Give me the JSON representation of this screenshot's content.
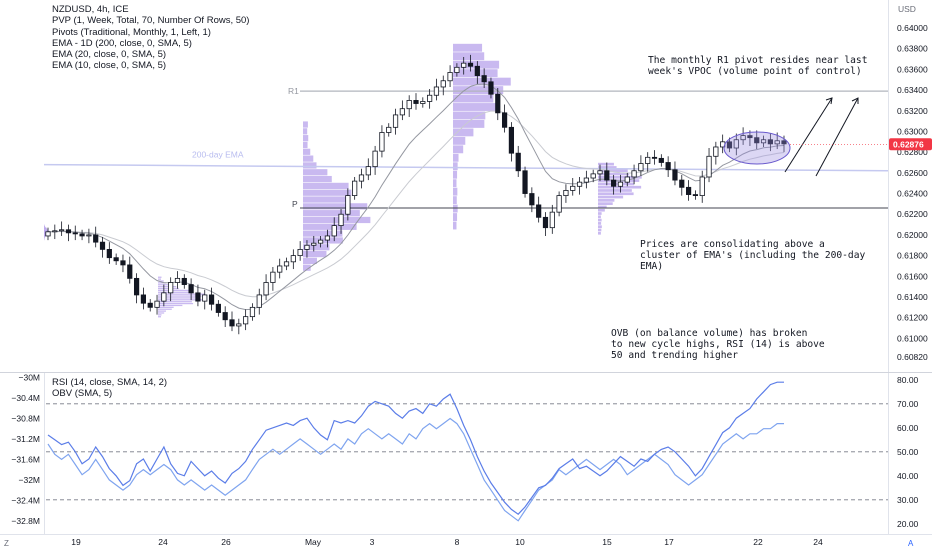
{
  "header": {
    "symbol_line": "NZDUSD, 4h, ICE",
    "indicators": [
      "PVP (1, Week, Total, 70, Number Of Rows, 50)",
      "Pivots (Traditional, Monthly, 1, Left, 1)",
      "EMA - 1D (200, close, 0, SMA, 5)",
      "EMA (20, close, 0, SMA, 5)",
      "EMA (10, close, 0, SMA, 5)"
    ],
    "osc_indicators": [
      "RSI (14, close, SMA, 14, 2)",
      "OBV (SMA, 5)"
    ]
  },
  "price_axis": {
    "currency": "USD",
    "ticks": [
      "0.64000",
      "0.63800",
      "0.63600",
      "0.63400",
      "0.63200",
      "0.63000",
      "0.62800",
      "0.62600",
      "0.62400",
      "0.62200",
      "0.62000",
      "0.61800",
      "0.61600",
      "0.61400",
      "0.61200",
      "0.61000",
      "0.60820"
    ],
    "last_price": "0.62876",
    "last_price_color": "#f23645"
  },
  "rsi_axis": {
    "ticks": [
      "80.00",
      "70.00",
      "60.00",
      "50.00",
      "40.00",
      "30.00",
      "20.00"
    ]
  },
  "obv_axis": {
    "ticks": [
      "−30M",
      "−30.4M",
      "−30.8M",
      "−31.2M",
      "−31.6M",
      "−32M",
      "−32.4M",
      "−32.8M"
    ]
  },
  "time_axis": {
    "labels": [
      "19",
      "24",
      "26",
      "May",
      "3",
      "8",
      "10",
      "15",
      "17",
      "22",
      "24"
    ]
  },
  "chart_labels": {
    "r1": "R1",
    "p": "P",
    "ema200": "200-day EMA"
  },
  "annotations": {
    "r1_note": "The monthly R1 pivot resides near last\nweek's VPOC (volume point of control)",
    "ema_note": "Prices are consolidating above a\ncluster of EMA's (including the 200-day\nEMA)",
    "obv_note": "OVB (on balance volume) has broken\nto new cycle highs, RSI (14) is above\n50 and trending higher"
  },
  "footer": {
    "left_icon": "Z",
    "right_icon": "A"
  },
  "colors": {
    "candle": "#131722",
    "ema_fast": "#9598a1",
    "ema_slow": "#c9cbd1",
    "ema200": "#c5c9f0",
    "pivot_r1": "#b2b5be",
    "pivot_p": "#434651",
    "volume_profile": "#9c7fe3",
    "rsi": "#5b7de8",
    "obv": "#7fa4ef",
    "ellipse": "#9c8ce0"
  },
  "chart_data": {
    "type": "candlestick",
    "timeframe": "4h",
    "y_range": [
      0.6082,
      0.6405
    ],
    "levels": {
      "r1": 0.6339,
      "p": 0.6226,
      "ema200": 0.6265,
      "vpoc_area": 0.6288
    },
    "closes": [
      0.6203,
      0.6204,
      0.6205,
      0.6202,
      0.6201,
      0.6199,
      0.62,
      0.6193,
      0.6186,
      0.6178,
      0.6175,
      0.6171,
      0.6158,
      0.6142,
      0.6134,
      0.613,
      0.6136,
      0.6144,
      0.6154,
      0.6158,
      0.6152,
      0.6144,
      0.6136,
      0.6142,
      0.6133,
      0.6125,
      0.6118,
      0.6112,
      0.6114,
      0.6121,
      0.613,
      0.6142,
      0.6154,
      0.6164,
      0.617,
      0.6174,
      0.618,
      0.6186,
      0.619,
      0.6192,
      0.6195,
      0.6199,
      0.6209,
      0.622,
      0.6238,
      0.6252,
      0.6258,
      0.6266,
      0.6281,
      0.6299,
      0.6304,
      0.6316,
      0.6322,
      0.633,
      0.6327,
      0.6329,
      0.6335,
      0.6343,
      0.6349,
      0.6357,
      0.6362,
      0.6366,
      0.6363,
      0.6354,
      0.6348,
      0.6336,
      0.6318,
      0.6304,
      0.6279,
      0.6262,
      0.624,
      0.6229,
      0.6217,
      0.6207,
      0.6222,
      0.6238,
      0.6243,
      0.6247,
      0.6251,
      0.6255,
      0.6259,
      0.6262,
      0.6253,
      0.6247,
      0.6251,
      0.6256,
      0.6262,
      0.6269,
      0.6275,
      0.6274,
      0.627,
      0.6263,
      0.6253,
      0.6246,
      0.6239,
      0.6238,
      0.6256,
      0.6276,
      0.6285,
      0.629,
      0.6284,
      0.6292,
      0.6296,
      0.6294,
      0.6289,
      0.6292,
      0.6288,
      0.6291,
      0.6288
    ],
    "rsi": {
      "y_range": [
        17,
        82
      ],
      "levels": [
        70,
        50,
        30
      ],
      "values": [
        57,
        55,
        53,
        54,
        50,
        45,
        47,
        52,
        48,
        43,
        40,
        36,
        38,
        45,
        47,
        42,
        47,
        52,
        45,
        41,
        40,
        46,
        43,
        40,
        42,
        39,
        37,
        41,
        43,
        46,
        51,
        55,
        59,
        60,
        61,
        62,
        61,
        63,
        64,
        60,
        57,
        55,
        63,
        62,
        63,
        62,
        65,
        69,
        71,
        70,
        69,
        66,
        64,
        67,
        68,
        66,
        70,
        69,
        72,
        74,
        68,
        61,
        55,
        48,
        42,
        37,
        33,
        29,
        26,
        24,
        27,
        31,
        35,
        36,
        39,
        43,
        45,
        47,
        43,
        44,
        42,
        40,
        42,
        45,
        48,
        46,
        44,
        47,
        46,
        49,
        51,
        52,
        50,
        47,
        44,
        40,
        43,
        48,
        53,
        58,
        60,
        64,
        66,
        68,
        72,
        75,
        78,
        79,
        79
      ],
      "ticks": [
        80,
        70,
        60,
        50,
        40,
        30,
        20
      ]
    },
    "obv": {
      "unit": "M",
      "values": [
        -31.3,
        -31.5,
        -31.6,
        -31.5,
        -31.7,
        -31.9,
        -31.8,
        -31.6,
        -31.8,
        -32.0,
        -32.1,
        -32.2,
        -32.1,
        -31.9,
        -31.8,
        -31.9,
        -31.8,
        -31.7,
        -31.8,
        -32.0,
        -32.1,
        -32.0,
        -32.1,
        -32.2,
        -32.1,
        -32.2,
        -32.3,
        -32.2,
        -32.1,
        -32.0,
        -31.8,
        -31.6,
        -31.5,
        -31.4,
        -31.5,
        -31.4,
        -31.3,
        -31.2,
        -31.3,
        -31.4,
        -31.5,
        -31.4,
        -31.3,
        -31.4,
        -31.2,
        -31.3,
        -31.1,
        -31.0,
        -31.1,
        -31.2,
        -31.1,
        -31.2,
        -31.3,
        -31.1,
        -31.2,
        -31.0,
        -30.9,
        -31.0,
        -30.9,
        -30.8,
        -30.9,
        -31.1,
        -31.4,
        -31.7,
        -32.0,
        -32.2,
        -32.4,
        -32.6,
        -32.7,
        -32.8,
        -32.6,
        -32.4,
        -32.2,
        -32.1,
        -32.0,
        -31.8,
        -31.9,
        -31.8,
        -31.7,
        -31.6,
        -31.7,
        -31.8,
        -31.7,
        -31.6,
        -31.7,
        -31.9,
        -31.8,
        -31.7,
        -31.6,
        -31.5,
        -31.6,
        -31.7,
        -31.9,
        -32.0,
        -32.1,
        -32.0,
        -31.9,
        -31.7,
        -31.5,
        -31.3,
        -31.2,
        -31.1,
        -31.2,
        -31.1,
        -31.1,
        -31.0,
        -31.0,
        -30.9,
        -30.9
      ]
    }
  }
}
